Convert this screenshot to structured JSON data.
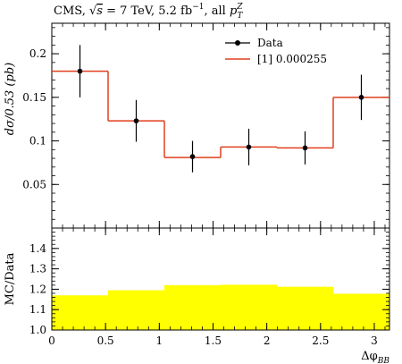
{
  "title": {
    "prefix": "CMS, ",
    "sqrt": "√",
    "s": "s",
    "energy": " = 7 TeV, 5.2 fb",
    "lumi_exp": "−1",
    "suffix": ", all ",
    "p": "p",
    "p_sup": "Z",
    "p_sub": "T"
  },
  "colors": {
    "data": "#000000",
    "mc": "#e0401f",
    "ratio_band": "#ffff00"
  },
  "chart_data": [
    {
      "type": "line",
      "subtype": "histogram-step with data points",
      "ylabel": "dσ/0.53 (pb)",
      "ylim": [
        0.0,
        0.235
      ],
      "xlim": [
        0.0,
        3.1416
      ],
      "xticks": [
        0,
        0.5,
        1,
        1.5,
        2,
        2.5,
        3
      ],
      "xtick_labels": [
        "0",
        "0.5",
        "1",
        "1.5",
        "2",
        "2.5",
        "3"
      ],
      "yticks": [
        0.05,
        0.1,
        0.15,
        0.2
      ],
      "ytick_labels": [
        "0.05",
        "0.1",
        "0.15",
        "0.2"
      ],
      "bin_edges": [
        0.0,
        0.5236,
        1.0472,
        1.5708,
        2.0944,
        2.618,
        3.1416
      ],
      "legend_position": "top-right",
      "series": [
        {
          "name": "Data",
          "kind": "points with error bars",
          "x": [
            0.2618,
            0.7854,
            1.309,
            1.8326,
            2.3562,
            2.8798
          ],
          "y": [
            0.18,
            0.123,
            0.082,
            0.093,
            0.092,
            0.15
          ],
          "yerr": [
            0.03,
            0.024,
            0.018,
            0.021,
            0.019,
            0.026
          ]
        },
        {
          "name": "[1] 0.000255",
          "kind": "histogram",
          "values": [
            0.18,
            0.123,
            0.081,
            0.093,
            0.092,
            0.15
          ]
        }
      ]
    },
    {
      "type": "area",
      "subtype": "ratio band",
      "ylabel": "MC/Data",
      "xlabel": "Δφ",
      "xlabel_sub": "BB",
      "ylim": [
        1.0,
        1.5
      ],
      "xlim": [
        0.0,
        3.1416
      ],
      "xticks": [
        0,
        0.5,
        1,
        1.5,
        2,
        2.5,
        3
      ],
      "xtick_labels": [
        "0",
        "0.5",
        "1",
        "1.5",
        "2",
        "2.5",
        "3"
      ],
      "yticks": [
        1.0,
        1.1,
        1.2,
        1.3,
        1.4
      ],
      "ytick_labels": [
        "1.0",
        "1.1",
        "1.2",
        "1.3",
        "1.4"
      ],
      "bin_edges": [
        0.0,
        0.5236,
        1.0472,
        1.5708,
        2.0944,
        2.618,
        3.1416
      ],
      "series": [
        {
          "kind": "band",
          "values": [
            1.17,
            1.195,
            1.22,
            1.222,
            1.212,
            1.178
          ]
        }
      ]
    }
  ]
}
